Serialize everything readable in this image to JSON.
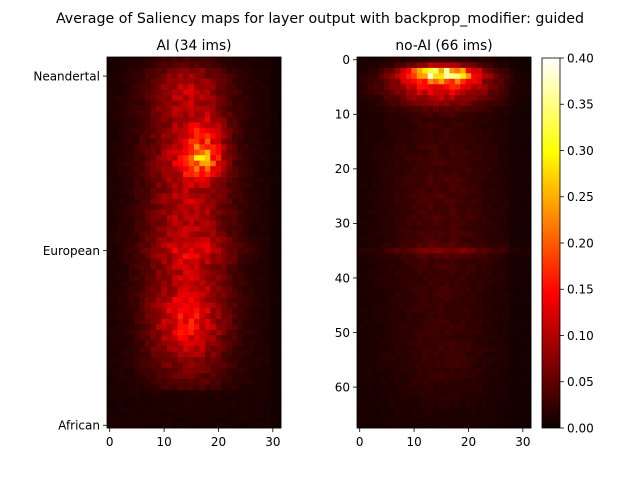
{
  "figure_title": "Average of Saliency maps for layer output with backprop_modifier: guided",
  "colormap": {
    "name": "hot",
    "stops": [
      "#0b0000",
      "#ff0000",
      "#ffff00",
      "#ffffff"
    ]
  },
  "chart_data": [
    {
      "type": "heatmap",
      "title": "AI (34 ims)",
      "xlabel": "",
      "ylabel": "",
      "xlim": [
        -0.5,
        31.5
      ],
      "ylim": [
        67.5,
        -0.5
      ],
      "x_ticks": [
        0,
        10,
        20,
        30
      ],
      "y_ticks": [
        {
          "value": 3,
          "label": "Neandertal"
        },
        {
          "value": 35,
          "label": "European"
        },
        {
          "value": 67,
          "label": "African"
        }
      ],
      "grid": false,
      "profile": {
        "description_of_bright_regions": "broad warm region over columns 6-22, rows 0-60; hottest blob near column 17, row 18",
        "hotspot_center": [
          17,
          18
        ],
        "hotspot_peak": 0.22,
        "background_level": 0.03
      }
    },
    {
      "type": "heatmap",
      "title": "no-AI (66 ims)",
      "xlabel": "",
      "ylabel": "",
      "xlim": [
        -0.5,
        31.5
      ],
      "ylim": [
        67.5,
        -0.5
      ],
      "x_ticks": [
        0,
        10,
        20,
        30
      ],
      "y_ticks": [
        {
          "value": 0,
          "label": "0"
        },
        {
          "value": 10,
          "label": "10"
        },
        {
          "value": 20,
          "label": "20"
        },
        {
          "value": 30,
          "label": "30"
        },
        {
          "value": 40,
          "label": "40"
        },
        {
          "value": 50,
          "label": "50"
        },
        {
          "value": 60,
          "label": "60"
        }
      ],
      "grid": false,
      "profile": {
        "hotspot_rows": [
          1,
          4
        ],
        "hotspot_center_column": 15,
        "hotspot_peak": 0.34,
        "band_row": 35,
        "background_level": 0.015
      }
    },
    {
      "type": "colorbar",
      "range": [
        0.0,
        0.4
      ],
      "ticks": [
        "0.00",
        "0.05",
        "0.10",
        "0.15",
        "0.20",
        "0.25",
        "0.30",
        "0.35",
        "0.40"
      ]
    }
  ]
}
